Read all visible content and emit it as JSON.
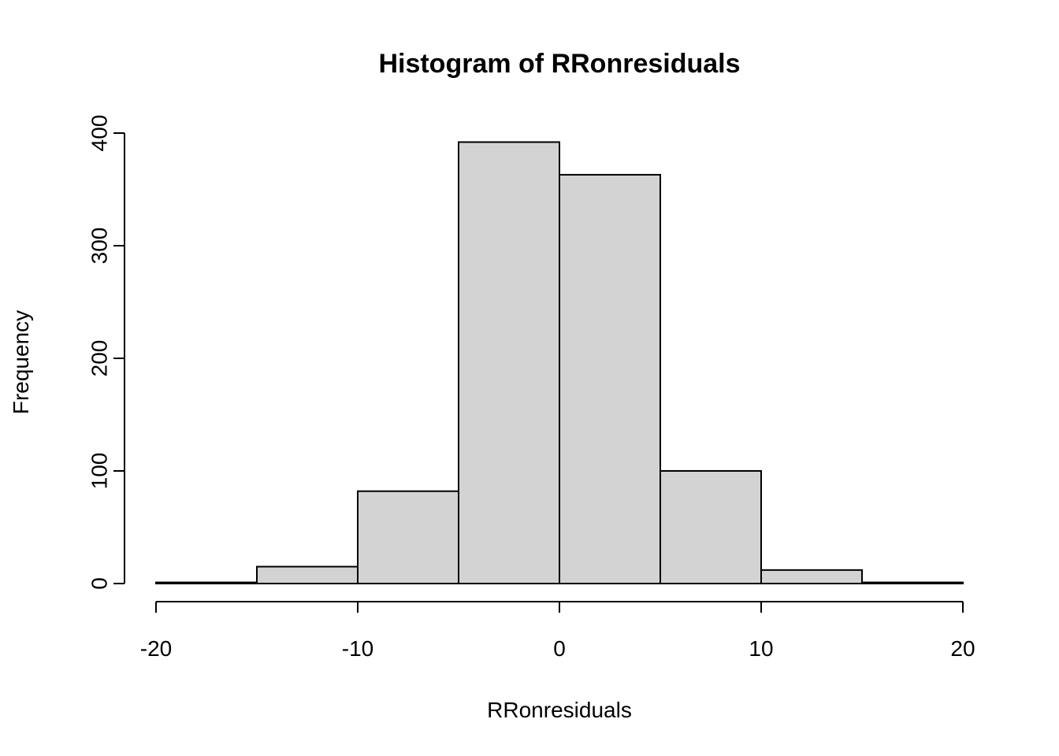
{
  "chart_data": {
    "type": "bar",
    "title": "Histogram of RRonresiduals",
    "xlabel": "RRonresiduals",
    "ylabel": "Frequency",
    "bins": [
      {
        "from": -20,
        "to": -15,
        "value": 1
      },
      {
        "from": -15,
        "to": -10,
        "value": 15
      },
      {
        "from": -10,
        "to": -5,
        "value": 82
      },
      {
        "from": -5,
        "to": 0,
        "value": 392
      },
      {
        "from": 0,
        "to": 5,
        "value": 363
      },
      {
        "from": 5,
        "to": 10,
        "value": 100
      },
      {
        "from": 10,
        "to": 15,
        "value": 12
      },
      {
        "from": 15,
        "to": 20,
        "value": 1
      }
    ],
    "xlim": [
      -20,
      20
    ],
    "ylim": [
      0,
      400
    ],
    "x_ticks": [
      -20,
      -10,
      0,
      10,
      20
    ],
    "x_tick_labels": [
      "-20",
      "-10",
      "0",
      "10",
      "20"
    ],
    "y_ticks": [
      0,
      100,
      200,
      300,
      400
    ],
    "y_tick_labels": [
      "0",
      "100",
      "200",
      "300",
      "400"
    ],
    "grid": false,
    "colors": {
      "bar_fill": "#d3d3d3",
      "bar_stroke": "#000000"
    }
  }
}
